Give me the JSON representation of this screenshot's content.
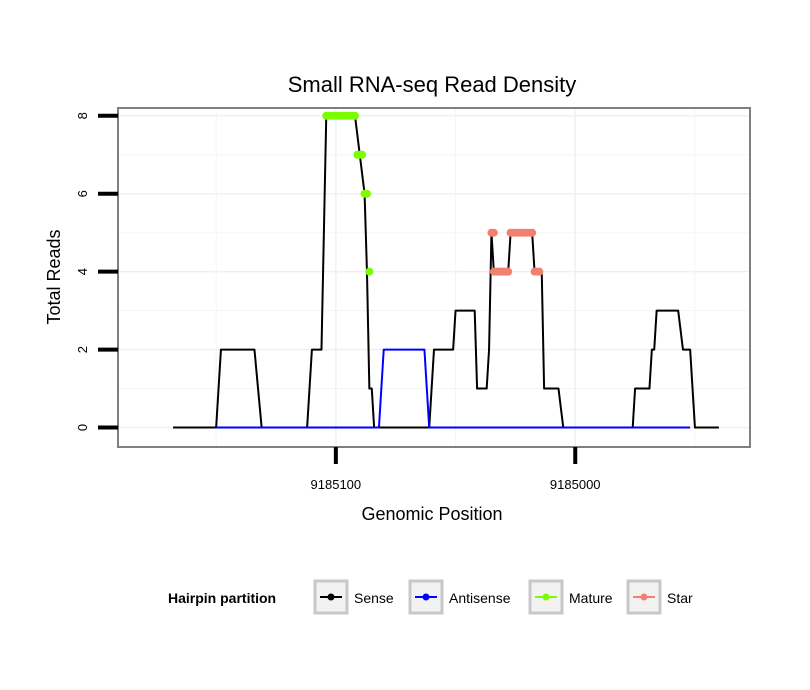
{
  "chart_data": {
    "type": "line",
    "title": "Small RNA-seq Read Density",
    "xlabel": "Genomic Position",
    "ylabel": "Total Reads",
    "x_reversed": true,
    "xlim": [
      9185191,
      9184927
    ],
    "ylim": [
      -0.5,
      8.2
    ],
    "x_ticks": [
      {
        "value": 9185100,
        "label": "9185100"
      },
      {
        "value": 9185000,
        "label": "9185000"
      }
    ],
    "y_ticks": [
      {
        "value": 0,
        "label": "0"
      },
      {
        "value": 2,
        "label": "2"
      },
      {
        "value": 4,
        "label": "4"
      },
      {
        "value": 6,
        "label": "6"
      },
      {
        "value": 8,
        "label": "8"
      }
    ],
    "legend": {
      "title": "Hairpin partition",
      "placement": "bottom",
      "entries": [
        {
          "name": "Sense",
          "color": "#000000"
        },
        {
          "name": "Antisense",
          "color": "#0000ff"
        },
        {
          "name": "Mature",
          "color": "#7cfc00"
        },
        {
          "name": "Star",
          "color": "#f08070"
        }
      ]
    },
    "series": [
      {
        "name": "Sense",
        "color": "#000000",
        "points": [
          [
            9185168,
            0
          ],
          [
            9185150,
            0
          ],
          [
            9185148,
            2
          ],
          [
            9185134,
            2
          ],
          [
            9185131,
            0
          ],
          [
            9185112,
            0
          ],
          [
            9185110,
            2
          ],
          [
            9185106,
            2
          ],
          [
            9185104,
            8
          ],
          [
            9185092,
            8
          ],
          [
            9185090,
            7
          ],
          [
            9185088,
            6
          ],
          [
            9185087,
            4
          ],
          [
            9185086,
            1
          ],
          [
            9185085,
            1
          ],
          [
            9185084,
            0
          ],
          [
            9185082,
            0
          ],
          [
            9185080,
            0
          ],
          [
            9185078,
            0
          ],
          [
            9185077,
            0
          ],
          [
            9185076,
            0
          ],
          [
            9185066,
            0
          ],
          [
            9185063,
            0
          ],
          [
            9185061,
            0
          ],
          [
            9185059,
            2
          ],
          [
            9185051,
            2
          ],
          [
            9185050,
            3
          ],
          [
            9185042,
            3
          ],
          [
            9185041,
            1
          ],
          [
            9185037,
            1
          ],
          [
            9185036,
            2
          ],
          [
            9185035,
            5
          ],
          [
            9185034,
            4
          ],
          [
            9185028,
            4
          ],
          [
            9185027,
            5
          ],
          [
            9185018,
            5
          ],
          [
            9185017,
            4
          ],
          [
            9185014,
            4
          ],
          [
            9185013,
            1
          ],
          [
            9185007,
            1
          ],
          [
            9185005,
            0
          ],
          [
            9184976,
            0
          ],
          [
            9184975,
            1
          ],
          [
            9184969,
            1
          ],
          [
            9184968,
            2
          ],
          [
            9184967,
            2
          ],
          [
            9184966,
            3
          ],
          [
            9184957,
            3
          ],
          [
            9184955,
            2
          ],
          [
            9184952,
            2
          ],
          [
            9184950,
            0
          ],
          [
            9184940,
            0
          ]
        ]
      },
      {
        "name": "Antisense",
        "color": "#0000ff",
        "points": [
          [
            9185150,
            0
          ],
          [
            9185082,
            0
          ],
          [
            9185080,
            2
          ],
          [
            9185063,
            2
          ],
          [
            9185061,
            0
          ],
          [
            9184952,
            0
          ]
        ]
      },
      {
        "name": "Mature",
        "color": "#7cfc00",
        "points": [
          [
            9185104,
            8
          ],
          [
            9185103,
            8
          ],
          [
            9185102,
            8
          ],
          [
            9185101,
            8
          ],
          [
            9185100,
            8
          ],
          [
            9185099,
            8
          ],
          [
            9185098,
            8
          ],
          [
            9185097,
            8
          ],
          [
            9185096,
            8
          ],
          [
            9185095,
            8
          ],
          [
            9185094,
            8
          ],
          [
            9185093,
            8
          ],
          [
            9185092,
            8
          ],
          [
            9185091,
            7
          ],
          [
            9185090,
            7
          ],
          [
            9185089,
            7
          ],
          [
            9185088,
            6
          ],
          [
            9185087,
            6
          ],
          [
            9185086,
            4
          ]
        ]
      },
      {
        "name": "Star",
        "color": "#f08070",
        "points": [
          [
            9185035,
            5
          ],
          [
            9185034,
            5
          ],
          [
            9185034,
            4
          ],
          [
            9185033,
            4
          ],
          [
            9185032,
            4
          ],
          [
            9185031,
            4
          ],
          [
            9185030,
            4
          ],
          [
            9185029,
            4
          ],
          [
            9185028,
            4
          ],
          [
            9185027,
            5
          ],
          [
            9185026,
            5
          ],
          [
            9185025,
            5
          ],
          [
            9185024,
            5
          ],
          [
            9185023,
            5
          ],
          [
            9185022,
            5
          ],
          [
            9185021,
            5
          ],
          [
            9185020,
            5
          ],
          [
            9185019,
            5
          ],
          [
            9185018,
            5
          ],
          [
            9185017,
            4
          ],
          [
            9185016,
            4
          ],
          [
            9185015,
            4
          ]
        ]
      }
    ]
  }
}
